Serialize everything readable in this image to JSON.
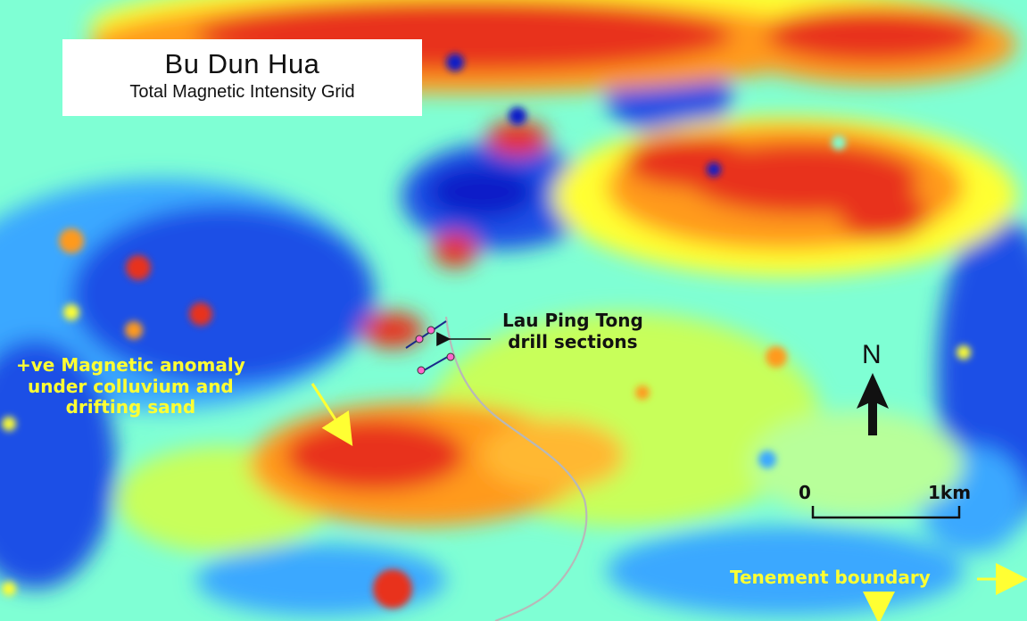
{
  "title": {
    "main": "Bu Dun Hua",
    "sub": "Total Magnetic Intensity Grid"
  },
  "annotations": {
    "drill_sections": [
      "Lau Ping Tong",
      "drill sections"
    ],
    "anomaly": [
      "+ve Magnetic anomaly",
      "under colluvium and",
      "drifting sand"
    ],
    "tenement": "Tenement boundary"
  },
  "north_arrow": {
    "label": "N"
  },
  "scale_bar": {
    "start": "0",
    "end": "1km"
  },
  "colors": {
    "high": "#e8321a",
    "mid_high": "#ff9a1f",
    "mid": "#ffff33",
    "mid_low": "#7fffd4",
    "low": "#1f4fe6",
    "lowest": "#0a1fc8",
    "annotation_yellow": "#ffff33",
    "track": "#b8b8b8"
  }
}
